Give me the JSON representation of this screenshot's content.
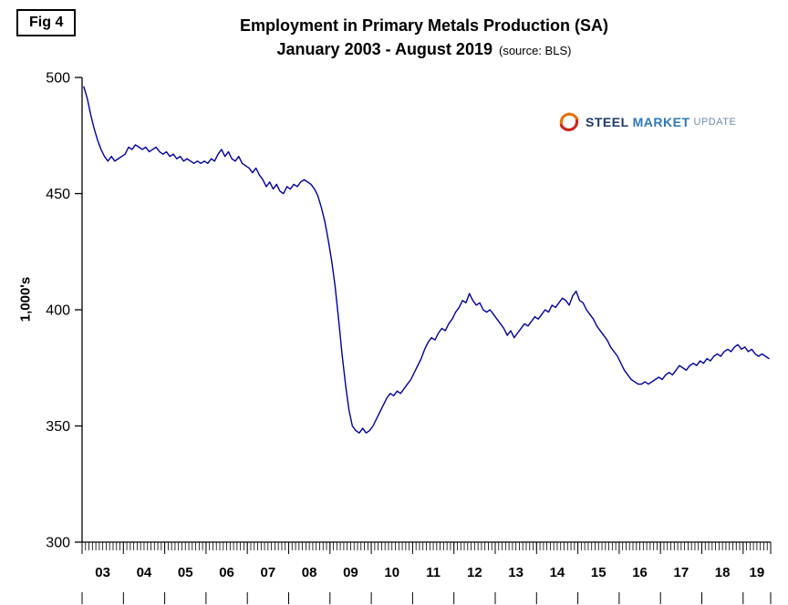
{
  "fig_label": "Fig 4",
  "title": "Employment in Primary Metals Production (SA)",
  "subtitle": "January 2003 - August 2019",
  "subtitle_source": "(source: BLS)",
  "y_axis_title": "1,000's",
  "logo": {
    "steel": "STEEL",
    "market": "MARKET",
    "update": "UPDATE"
  },
  "chart_data": {
    "type": "line",
    "title": "Employment in Primary Metals Production (SA)",
    "subtitle": "January 2003 - August 2019",
    "source": "BLS",
    "xlabel": "",
    "ylabel": "1,000's",
    "ylim": [
      300,
      500
    ],
    "y_ticks": [
      500,
      450,
      400,
      350,
      300
    ],
    "x_tick_labels": [
      "03",
      "04",
      "05",
      "06",
      "07",
      "08",
      "09",
      "10",
      "11",
      "12",
      "13",
      "14",
      "15",
      "16",
      "17",
      "18",
      "19"
    ],
    "frequency": "monthly",
    "x_start": "2003-01",
    "x_end": "2019-08",
    "grid": false,
    "legend": "none",
    "line_color": "#00009e",
    "series_name": "Employment (thousands, seasonally adjusted)",
    "values": [
      496,
      491,
      484,
      478,
      473,
      469,
      466,
      464,
      466,
      464,
      465,
      466,
      467,
      470,
      469,
      471,
      470,
      469,
      470,
      468,
      469,
      470,
      468,
      467,
      468,
      466,
      467,
      465,
      466,
      464,
      465,
      464,
      463,
      464,
      463,
      464,
      463,
      465,
      464,
      467,
      469,
      466,
      468,
      465,
      464,
      466,
      463,
      462,
      461,
      459,
      461,
      458,
      456,
      453,
      455,
      452,
      454,
      451,
      450,
      453,
      452,
      454,
      453,
      455,
      456,
      455,
      454,
      452,
      449,
      444,
      438,
      430,
      421,
      410,
      396,
      381,
      368,
      357,
      350,
      348,
      347,
      349,
      347,
      348,
      350,
      353,
      356,
      359,
      362,
      364,
      363,
      365,
      364,
      366,
      368,
      370,
      373,
      376,
      379,
      383,
      386,
      388,
      387,
      390,
      392,
      391,
      394,
      396,
      399,
      401,
      404,
      403,
      407,
      404,
      402,
      403,
      400,
      399,
      400,
      398,
      396,
      394,
      392,
      389,
      391,
      388,
      390,
      392,
      394,
      393,
      395,
      397,
      396,
      398,
      400,
      399,
      402,
      401,
      403,
      405,
      404,
      402,
      406,
      408,
      404,
      403,
      400,
      398,
      396,
      393,
      391,
      389,
      387,
      384,
      382,
      380,
      377,
      374,
      372,
      370,
      369,
      368,
      368,
      369,
      368,
      369,
      370,
      371,
      370,
      372,
      373,
      372,
      374,
      376,
      375,
      374,
      376,
      377,
      376,
      378,
      377,
      379,
      378,
      380,
      381,
      380,
      382,
      383,
      382,
      384,
      385,
      383,
      384,
      382,
      383,
      381,
      380,
      381,
      380,
      379
    ]
  }
}
